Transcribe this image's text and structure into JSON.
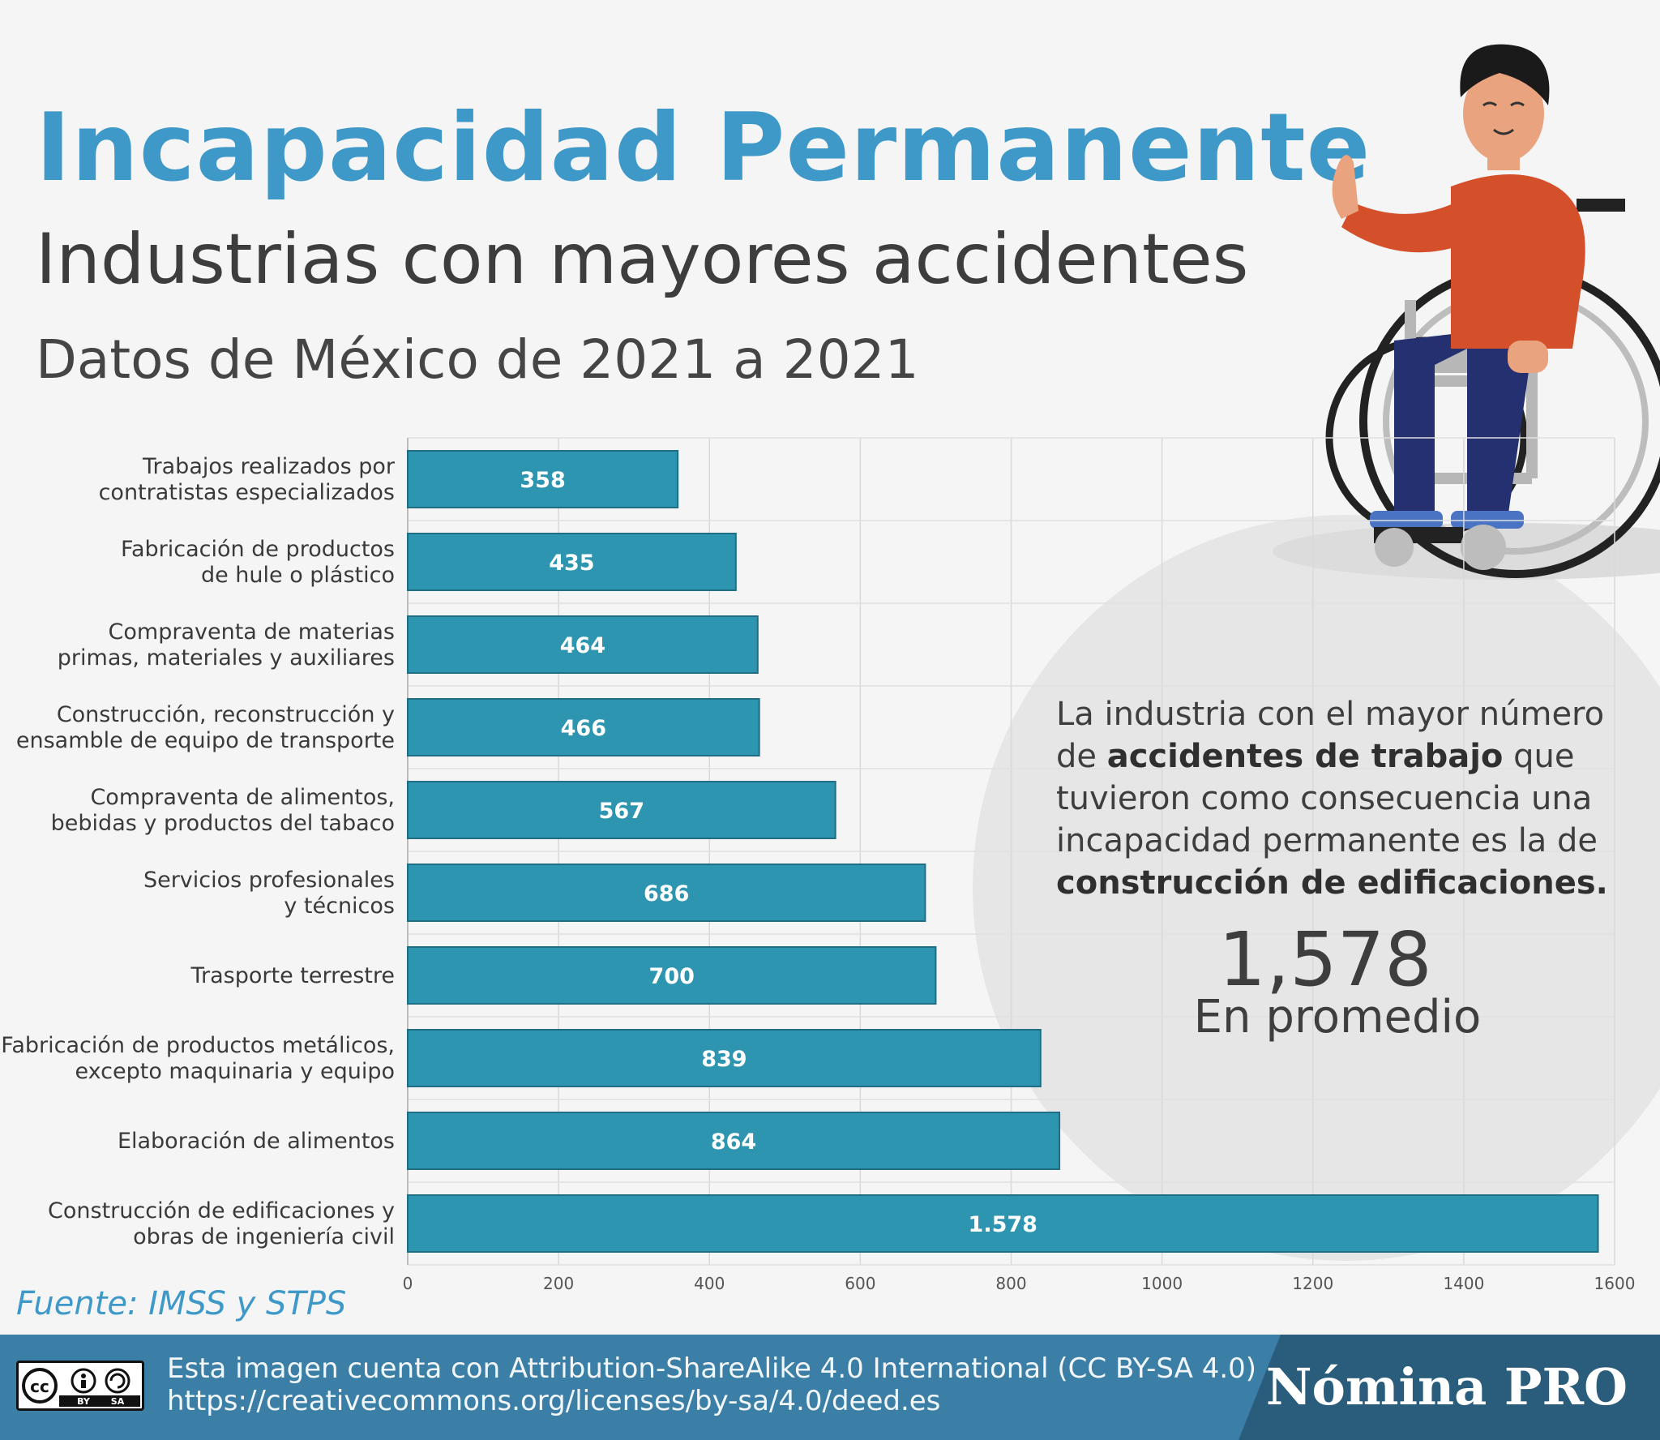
{
  "header": {
    "title": "Incapacidad Permanente",
    "subtitle": "Industrias con mayores accidentes",
    "range": "Datos de México de  2021 a 2021"
  },
  "chart_data": {
    "type": "bar",
    "orientation": "horizontal",
    "categories": [
      [
        "Trabajos realizados por",
        "contratistas especializados"
      ],
      [
        "Fabricación de productos",
        "de hule o plástico"
      ],
      [
        "Compraventa de materias",
        "primas, materiales y auxiliares"
      ],
      [
        "Construcción, reconstrucción y",
        "ensamble de equipo de transporte"
      ],
      [
        "Compraventa de alimentos,",
        "bebidas y productos del tabaco"
      ],
      [
        "Servicios profesionales",
        "y técnicos"
      ],
      [
        "Trasporte terrestre"
      ],
      [
        "Fabricación de productos metálicos,",
        "excepto maquinaria y equipo"
      ],
      [
        "Elaboración de alimentos"
      ],
      [
        "Construcción de edificaciones y",
        "obras de ingeniería civil"
      ]
    ],
    "values": [
      358,
      435,
      464,
      466,
      567,
      686,
      700,
      839,
      864,
      1578
    ],
    "value_labels": [
      "358",
      "435",
      "464",
      "466",
      "567",
      "686",
      "700",
      "839",
      "864",
      "1.578"
    ],
    "xlim": [
      0,
      1600
    ],
    "ticks": [
      "0",
      "200",
      "400",
      "600",
      "800",
      "1000",
      "1200",
      "1400",
      "1600"
    ],
    "grid": true,
    "bar_color": "#2e95b0"
  },
  "callout": {
    "line_html_parts": [
      "La industria con el mayor número de ",
      "accidentes de trabajo",
      " que tuvieron como consecuencia una incapacidad permanente es la de ",
      "construcción de edificaciones."
    ],
    "number": "1,578",
    "sub": "En promedio"
  },
  "source": "Fuente: IMSS y STPS",
  "footer": {
    "license_line1": "Esta imagen cuenta con Attribution-ShareAlike 4.0 International (CC BY-SA 4.0)",
    "license_line2": "https://creativecommons.org/licenses/by-sa/4.0/deed.es",
    "brand": "Nómina PRO",
    "cc_labels": [
      "cc",
      "BY",
      "SA"
    ]
  },
  "colors": {
    "title": "#3f99c8",
    "circle": "#e6e6e7",
    "footer": "#3b7fa6",
    "footer_dark": "#2a5d7c",
    "shirt": "#d4502a",
    "pants": "#243070"
  }
}
